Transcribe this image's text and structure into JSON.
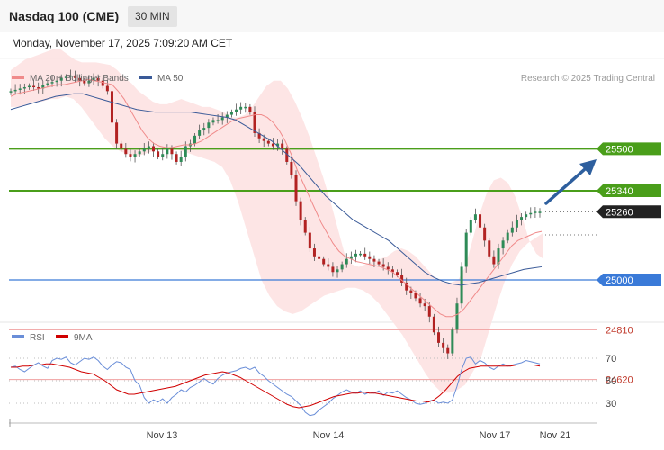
{
  "header": {
    "title": "Nasdaq 100 (CME)",
    "timeframe": "30 MIN"
  },
  "datetime": "Monday, November 17, 2025 7:09:20 AM CET",
  "credit": "Research © 2025 Trading Central",
  "colors": {
    "ma20": "#f08a8a",
    "ma50": "#3a5a98",
    "band": "#fde0e0",
    "up": "#2e8b57",
    "down": "#b22222",
    "resistance": "#4a9e1a",
    "support_blue": "#3a7ad8",
    "support_red": "#f0a0a0",
    "last": "#222222",
    "rsi": "#6a8ed8",
    "rsi_ma": "#d00000",
    "arrow": "#2e5f9e"
  },
  "chart_data": [
    {
      "type": "candlestick",
      "legend": [
        "MA 20 + Bollinger Bands",
        "MA 50"
      ],
      "x_labels": [
        "Nov 13",
        "Nov 14",
        "Nov 17",
        "Nov 21"
      ],
      "levels": [
        {
          "value": 25500,
          "label": "25500",
          "kind": "resistance"
        },
        {
          "value": 25340,
          "label": "25340",
          "kind": "resistance"
        },
        {
          "value": 25260,
          "label": "25260",
          "kind": "last"
        },
        {
          "value": 25000,
          "label": "25000",
          "kind": "support_blue"
        },
        {
          "value": 24810,
          "label": "24810",
          "kind": "support_red"
        },
        {
          "value": 24620,
          "label": "24620",
          "kind": "support_red"
        }
      ],
      "close": [
        25720,
        25725,
        25730,
        25735,
        25740,
        25735,
        25730,
        25745,
        25750,
        25755,
        25760,
        25770,
        25775,
        25780,
        25770,
        25760,
        25750,
        25760,
        25770,
        25760,
        25740,
        25720,
        25600,
        25520,
        25500,
        25480,
        25470,
        25480,
        25490,
        25500,
        25510,
        25490,
        25470,
        25480,
        25500,
        25480,
        25450,
        25470,
        25510,
        25520,
        25550,
        25570,
        25580,
        25600,
        25610,
        25610,
        25620,
        25630,
        25640,
        25650,
        25660,
        25660,
        25640,
        25560,
        25540,
        25530,
        25520,
        25510,
        25520,
        25500,
        25450,
        25400,
        25300,
        25230,
        25180,
        25120,
        25090,
        25080,
        25060,
        25050,
        25030,
        25040,
        25060,
        25080,
        25090,
        25100,
        25100,
        25090,
        25080,
        25070,
        25060,
        25050,
        25040,
        25030,
        25020,
        24990,
        24960,
        24950,
        24930,
        24910,
        24900,
        24860,
        24800,
        24760,
        24740,
        24720,
        24810,
        24910,
        25050,
        25180,
        25230,
        25250,
        25200,
        25150,
        25090,
        25060,
        25120,
        25150,
        25180,
        25200,
        25230,
        25240,
        25250,
        25255,
        25260,
        25260
      ],
      "ma20": [
        25700,
        25710,
        25715,
        25720,
        25725,
        25730,
        25735,
        25740,
        25745,
        25745,
        25750,
        25755,
        25760,
        25765,
        25760,
        25755,
        25750,
        25745,
        25720,
        25690,
        25650,
        25610,
        25570,
        25540,
        25520,
        25510,
        25505,
        25505,
        25510,
        25515,
        25515,
        25520,
        25530,
        25545,
        25560,
        25575,
        25590,
        25605,
        25615,
        25620,
        25625,
        25630,
        25630,
        25620,
        25600,
        25570,
        25530,
        25480,
        25420,
        25370,
        25320,
        25270,
        25220,
        25180,
        25140,
        25110,
        25090,
        25080,
        25070,
        25065,
        25060,
        25055,
        25050,
        25040,
        25030,
        25010,
        24990,
        24970,
        24950,
        24930,
        24910,
        24890,
        24870,
        24860,
        24860,
        24870,
        24890,
        24920,
        24950,
        24980,
        25010,
        25040,
        25070,
        25100,
        25130,
        25150,
        25160,
        25170,
        25180,
        25185
      ],
      "ma50": [
        25650,
        25660,
        25670,
        25680,
        25690,
        25700,
        25705,
        25710,
        25710,
        25700,
        25690,
        25680,
        25670,
        25660,
        25650,
        25645,
        25640,
        25640,
        25640,
        25640,
        25640,
        25635,
        25630,
        25625,
        25620,
        25610,
        25590,
        25570,
        25550,
        25530,
        25500,
        25470,
        25440,
        25400,
        25360,
        25320,
        25290,
        25260,
        25230,
        25210,
        25190,
        25170,
        25150,
        25120,
        25090,
        25060,
        25030,
        25010,
        24995,
        24985,
        24980,
        24985,
        24990,
        25000,
        25010,
        25020,
        25030,
        25040,
        25045,
        25050
      ],
      "bb_upper": [
        25800,
        25820,
        25840,
        25850,
        25860,
        25870,
        25880,
        25880,
        25860,
        25840,
        25830,
        25830,
        25830,
        25825,
        25820,
        25800,
        25770,
        25750,
        25720,
        25700,
        25680,
        25670,
        25670,
        25680,
        25690,
        25680,
        25670,
        25660,
        25660,
        25650,
        25640,
        25620,
        25620,
        25630,
        25660,
        25700,
        25740,
        25760,
        25760,
        25730,
        25680,
        25620,
        25550,
        25470,
        25390,
        25300,
        25200,
        25100,
        25060,
        25050,
        25060,
        25070,
        25080,
        25090,
        25110,
        25120,
        25110,
        25090,
        25060,
        25030,
        25000,
        24990,
        24990,
        25000,
        25050,
        25150,
        25250,
        25330,
        25380,
        25390,
        25370,
        25320,
        25240,
        25150,
        25100,
        25080
      ],
      "bb_lower": [
        25660,
        25660,
        25670,
        25680,
        25680,
        25690,
        25690,
        25700,
        25690,
        25660,
        25620,
        25580,
        25540,
        25510,
        25490,
        25480,
        25470,
        25480,
        25490,
        25500,
        25510,
        25500,
        25490,
        25480,
        25470,
        25460,
        25450,
        25430,
        25380,
        25300,
        25200,
        25100,
        25000,
        24940,
        24900,
        24880,
        24870,
        24880,
        24900,
        24920,
        24940,
        24950,
        24960,
        24970,
        24970,
        24960,
        24940,
        24910,
        24870,
        24830,
        24790,
        24740,
        24690,
        24640,
        24600,
        24570,
        24570,
        24580,
        24600,
        24650,
        24700,
        24800,
        24900,
        24990,
        25060,
        25110,
        25140,
        25160,
        25180
      ]
    },
    {
      "type": "line",
      "legend": [
        "RSI",
        "9MA"
      ],
      "y_ticks": [
        70,
        50,
        30
      ],
      "ylim": [
        15,
        85
      ],
      "rsi": [
        62,
        63,
        60,
        58,
        61,
        64,
        66,
        63,
        61,
        68,
        70,
        69,
        71,
        66,
        64,
        67,
        70,
        69,
        71,
        68,
        63,
        60,
        64,
        67,
        66,
        62,
        60,
        50,
        46,
        35,
        30,
        33,
        31,
        34,
        30,
        35,
        38,
        42,
        40,
        44,
        46,
        49,
        52,
        49,
        47,
        52,
        55,
        57,
        58,
        59,
        61,
        62,
        60,
        62,
        57,
        54,
        50,
        47,
        44,
        41,
        38,
        36,
        32,
        28,
        22,
        19,
        20,
        24,
        27,
        30,
        34,
        37,
        40,
        42,
        40,
        39,
        41,
        38,
        40,
        39,
        41,
        37,
        40,
        39,
        41,
        38,
        35,
        33,
        30,
        29,
        30,
        32,
        33,
        30,
        31,
        30,
        33,
        45,
        60,
        70,
        71,
        65,
        68,
        66,
        62,
        60,
        63,
        65,
        63,
        64,
        65,
        66,
        68,
        67,
        66,
        65
      ],
      "rsi_ma": [
        62,
        62,
        63,
        63,
        64,
        64,
        65,
        65,
        64,
        63,
        62,
        60,
        58,
        57,
        56,
        53,
        50,
        46,
        42,
        40,
        38,
        38,
        39,
        40,
        41,
        42,
        43,
        44,
        45,
        47,
        49,
        51,
        53,
        55,
        56,
        57,
        58,
        57,
        55,
        53,
        50,
        47,
        44,
        41,
        38,
        35,
        32,
        29,
        27,
        26,
        27,
        28,
        30,
        32,
        34,
        36,
        37,
        38,
        39,
        39,
        40,
        39,
        39,
        38,
        37,
        36,
        35,
        34,
        33,
        32,
        32,
        31,
        33,
        37,
        42,
        48,
        54,
        58,
        61,
        62,
        63,
        63,
        63,
        63,
        63,
        63,
        64,
        64,
        64,
        64,
        63
      ]
    }
  ]
}
